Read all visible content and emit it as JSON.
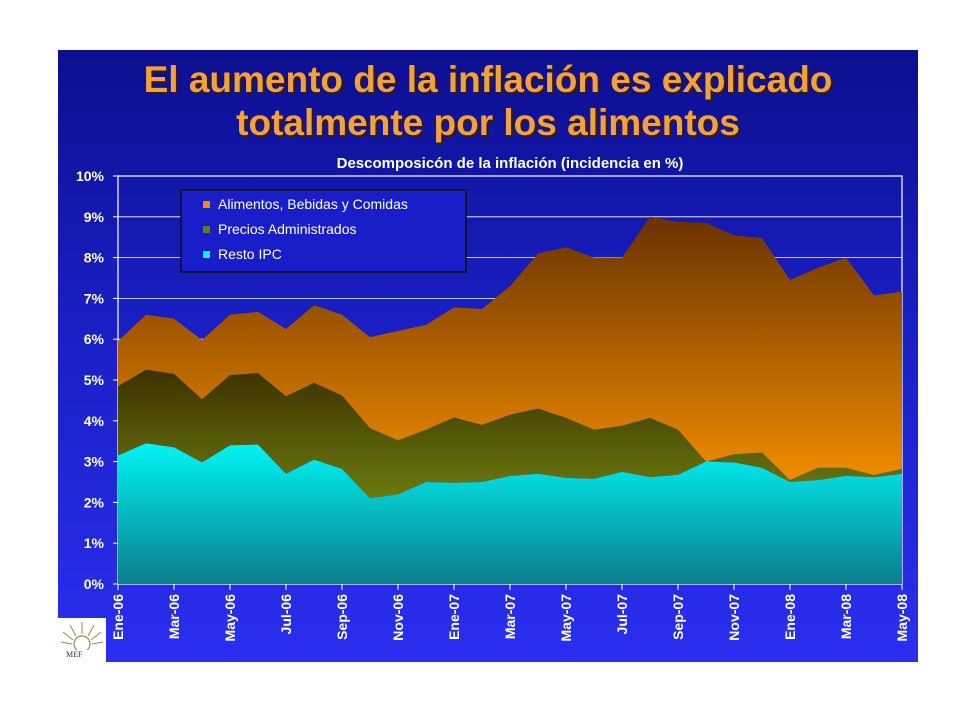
{
  "slide": {
    "title_line1": "El aumento de la inflación es explicado",
    "title_line2": "totalmente por los alimentos",
    "logo_text": "MEF"
  },
  "colors": {
    "alimentos": "#f08c00",
    "alimentos_dark": "#6a3200",
    "precios": "#6b7a10",
    "precios_dark": "#3d3200",
    "resto": "#00f4f4",
    "resto_dark": "#0b7e8c"
  },
  "chart_data": {
    "type": "area",
    "stacked": true,
    "title": "Descomposicón de la inflación (incidencia en %)",
    "xlabel": "",
    "ylabel": "",
    "ylim": [
      0,
      10
    ],
    "yticks": [
      "0%",
      "1%",
      "2%",
      "3%",
      "4%",
      "5%",
      "6%",
      "7%",
      "8%",
      "9%",
      "10%"
    ],
    "grid": true,
    "legend_position": "top-left",
    "x": [
      "Ene-06",
      "Feb-06",
      "Mar-06",
      "Abr-06",
      "May-06",
      "Jun-06",
      "Jul-06",
      "Ago-06",
      "Sep-06",
      "Oct-06",
      "Nov-06",
      "Dic-06",
      "Ene-07",
      "Feb-07",
      "Mar-07",
      "Abr-07",
      "May-07",
      "Jun-07",
      "Jul-07",
      "Ago-07",
      "Sep-07",
      "Oct-07",
      "Nov-07",
      "Dic-07",
      "Ene-08",
      "Feb-08",
      "Mar-08",
      "Abr-08",
      "May-08"
    ],
    "x_tick_labels": [
      "Ene-06",
      "Mar-06",
      "May-06",
      "Jul-06",
      "Sep-06",
      "Nov-06",
      "Ene-07",
      "Mar-07",
      "May-07",
      "Jul-07",
      "Sep-07",
      "Nov-07",
      "Ene-08",
      "Mar-08",
      "May-08"
    ],
    "series": [
      {
        "name": "Resto IPC",
        "values": [
          3.15,
          3.45,
          3.35,
          2.98,
          3.4,
          3.42,
          2.7,
          3.05,
          2.82,
          2.1,
          2.2,
          2.5,
          2.48,
          2.5,
          2.65,
          2.7,
          2.6,
          2.58,
          2.75,
          2.62,
          2.68,
          3.0,
          2.98,
          2.85,
          2.5,
          2.55,
          2.65,
          2.62,
          2.7
        ]
      },
      {
        "name": "Precios Administrados",
        "values": [
          1.7,
          1.8,
          1.8,
          1.55,
          1.72,
          1.75,
          1.9,
          1.88,
          1.8,
          1.72,
          1.32,
          1.28,
          1.6,
          1.4,
          1.5,
          1.6,
          1.47,
          1.2,
          1.13,
          1.45,
          1.1,
          0.0,
          0.2,
          0.37,
          0.05,
          0.3,
          0.2,
          0.05,
          0.12
        ]
      },
      {
        "name": "Alimentos, Bebidas y Comidas",
        "values": [
          1.1,
          1.35,
          1.35,
          1.45,
          1.48,
          1.5,
          1.65,
          1.9,
          1.98,
          2.23,
          2.68,
          2.57,
          2.7,
          2.84,
          3.15,
          3.8,
          4.18,
          4.22,
          4.12,
          4.93,
          5.1,
          5.85,
          5.37,
          5.26,
          4.9,
          4.9,
          5.15,
          4.4,
          4.35
        ]
      }
    ]
  }
}
